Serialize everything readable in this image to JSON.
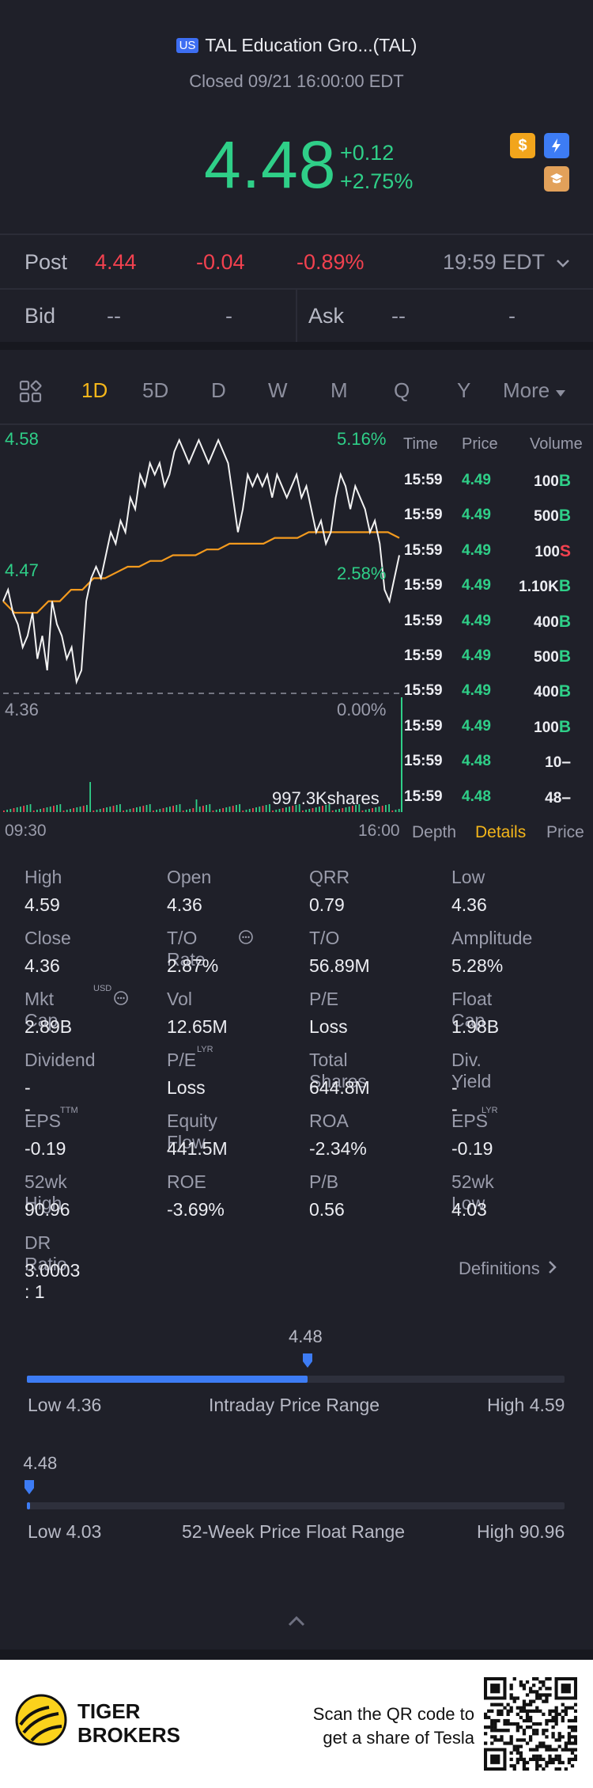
{
  "header": {
    "market_badge": "US",
    "title": "TAL Education Gro...(TAL)",
    "status": "Closed 09/21 16:00:00 EDT"
  },
  "quote": {
    "price": "4.48",
    "change": "+0.12",
    "change_pct": "+2.75%"
  },
  "icons": [
    "dollar-icon",
    "lightning-level1-icon",
    "education-icon"
  ],
  "post": {
    "label": "Post",
    "price": "4.44",
    "change": "-0.04",
    "change_pct": "-0.89%",
    "time": "19:59 EDT"
  },
  "bid_ask": {
    "bid_label": "Bid",
    "bid_price": "--",
    "bid_size": "-",
    "ask_label": "Ask",
    "ask_price": "--",
    "ask_size": "-"
  },
  "tabs": [
    "1D",
    "5D",
    "D",
    "W",
    "M",
    "Q",
    "Y",
    "More"
  ],
  "active_tab": "1D",
  "chart": {
    "y_high": "4.58",
    "y_mid": "4.47",
    "y_low": "4.36",
    "pct_high": "5.16%",
    "pct_mid": "2.58%",
    "pct_low": "0.00%",
    "volume_label": "997.3Kshares",
    "time_start": "09:30",
    "time_end": "16:00"
  },
  "chart_data": {
    "type": "line",
    "title": "",
    "xlabel": "",
    "ylabel": "",
    "x_range": [
      "09:30",
      "16:00"
    ],
    "ylim": [
      4.36,
      4.58
    ],
    "series": [
      {
        "values": [
          4.44,
          4.45,
          4.43,
          4.42,
          4.4,
          4.41,
          4.43,
          4.39,
          4.41,
          4.38,
          4.44,
          4.42,
          4.41,
          4.39,
          4.4,
          4.37,
          4.38,
          4.44,
          4.46,
          4.47,
          4.46,
          4.48,
          4.5,
          4.49,
          4.51,
          4.5,
          4.53,
          4.52,
          4.55,
          4.54,
          4.56,
          4.55,
          4.56,
          4.54,
          4.55,
          4.57,
          4.58,
          4.57,
          4.56,
          4.57,
          4.58,
          4.57,
          4.56,
          4.57,
          4.58,
          4.57,
          4.56,
          4.53,
          4.5,
          4.52,
          4.55,
          4.54,
          4.55,
          4.54,
          4.55,
          4.53,
          4.55,
          4.54,
          4.53,
          4.54,
          4.55,
          4.53,
          4.54,
          4.52,
          4.5,
          4.51,
          4.49,
          4.5,
          4.53,
          4.55,
          4.54,
          4.52,
          4.54,
          4.53,
          4.52,
          4.5,
          4.51,
          4.49,
          4.45,
          4.44,
          4.46,
          4.48
        ]
      },
      {
        "values": [
          4.44,
          4.43,
          4.43,
          4.43,
          4.44,
          4.44,
          4.45,
          4.45,
          4.46,
          4.46,
          4.465,
          4.47,
          4.47,
          4.475,
          4.475,
          4.48,
          4.48,
          4.48,
          4.485,
          4.485,
          4.49,
          4.49,
          4.49,
          4.49,
          4.495,
          4.495,
          4.495,
          4.5,
          4.5,
          4.5,
          4.5,
          4.5,
          4.5,
          4.5,
          4.5,
          4.495
        ]
      }
    ],
    "ticks": [
      {
        "time": "15:59",
        "price": "4.49",
        "volume": "100",
        "side": "B"
      },
      {
        "time": "15:59",
        "price": "4.49",
        "volume": "500",
        "side": "B"
      },
      {
        "time": "15:59",
        "price": "4.49",
        "volume": "100",
        "side": "S"
      },
      {
        "time": "15:59",
        "price": "4.49",
        "volume": "1.10K",
        "side": "B"
      },
      {
        "time": "15:59",
        "price": "4.49",
        "volume": "400",
        "side": "B"
      },
      {
        "time": "15:59",
        "price": "4.49",
        "volume": "500",
        "side": "B"
      },
      {
        "time": "15:59",
        "price": "4.49",
        "volume": "400",
        "side": "B"
      },
      {
        "time": "15:59",
        "price": "4.49",
        "volume": "100",
        "side": "B"
      },
      {
        "time": "15:59",
        "price": "4.48",
        "volume": "10",
        "side": "–"
      },
      {
        "time": "15:59",
        "price": "4.48",
        "volume": "48",
        "side": "–"
      }
    ]
  },
  "ticks_header": {
    "time": "Time",
    "price": "Price",
    "volume": "Volume"
  },
  "side_tabs": [
    "Depth",
    "Details",
    "Price"
  ],
  "stats": [
    {
      "label": "High",
      "value": "4.59"
    },
    {
      "label": "Open",
      "value": "4.36"
    },
    {
      "label": "QRR",
      "value": "0.79"
    },
    {
      "label": "Low",
      "value": "4.36"
    },
    {
      "label": "Close",
      "value": "4.36"
    },
    {
      "label": "T/O Rate",
      "value": "2.87%"
    },
    {
      "label": "T/O",
      "value": "56.89M"
    },
    {
      "label": "Amplitude",
      "value": "5.28%"
    },
    {
      "label": "Mkt Cap",
      "value": "2.89B",
      "sup": "USD"
    },
    {
      "label": "Vol",
      "value": "12.65M"
    },
    {
      "label": "P/E",
      "value": "Loss"
    },
    {
      "label": "Float Cap",
      "value": "1.98B"
    },
    {
      "label": "Dividend",
      "value": "--"
    },
    {
      "label": "P/E",
      "value": "Loss",
      "sup": "LYR"
    },
    {
      "label": "Total Shares",
      "value": "644.8M"
    },
    {
      "label": "Div. Yield",
      "value": "--"
    },
    {
      "label": "EPS",
      "value": "-0.19",
      "sup": "TTM"
    },
    {
      "label": "Equity Flow",
      "value": "441.5M"
    },
    {
      "label": "ROA",
      "value": "-2.34%"
    },
    {
      "label": "EPS",
      "value": "-0.19",
      "sup": "LYR"
    },
    {
      "label": "52wk High",
      "value": "90.96"
    },
    {
      "label": "ROE",
      "value": "-3.69%"
    },
    {
      "label": "P/B",
      "value": "0.56"
    },
    {
      "label": "52wk Low",
      "value": "4.03"
    },
    {
      "label": "DR Ratio",
      "value": "3.0003 : 1"
    }
  ],
  "definitions_link": "Definitions",
  "intraday_range": {
    "current": "4.48",
    "low_text": "Low 4.36",
    "title": "Intraday Price Range",
    "high_text": "High 4.59",
    "position": 0.522
  },
  "week52_range": {
    "current": "4.48",
    "low_text": "Low 4.03",
    "title": "52-Week Price Float Range",
    "high_text": "High 90.96",
    "position": 0.005
  },
  "footer": {
    "brand_line1": "TIGER",
    "brand_line2": "BROKERS",
    "promo_line1": "Scan the QR code to",
    "promo_line2": "get a share of Tesla"
  },
  "colors": {
    "up": "#2fcf88",
    "down": "#f2414f",
    "accent": "#f4b61a",
    "slider": "#3d7cf4"
  }
}
